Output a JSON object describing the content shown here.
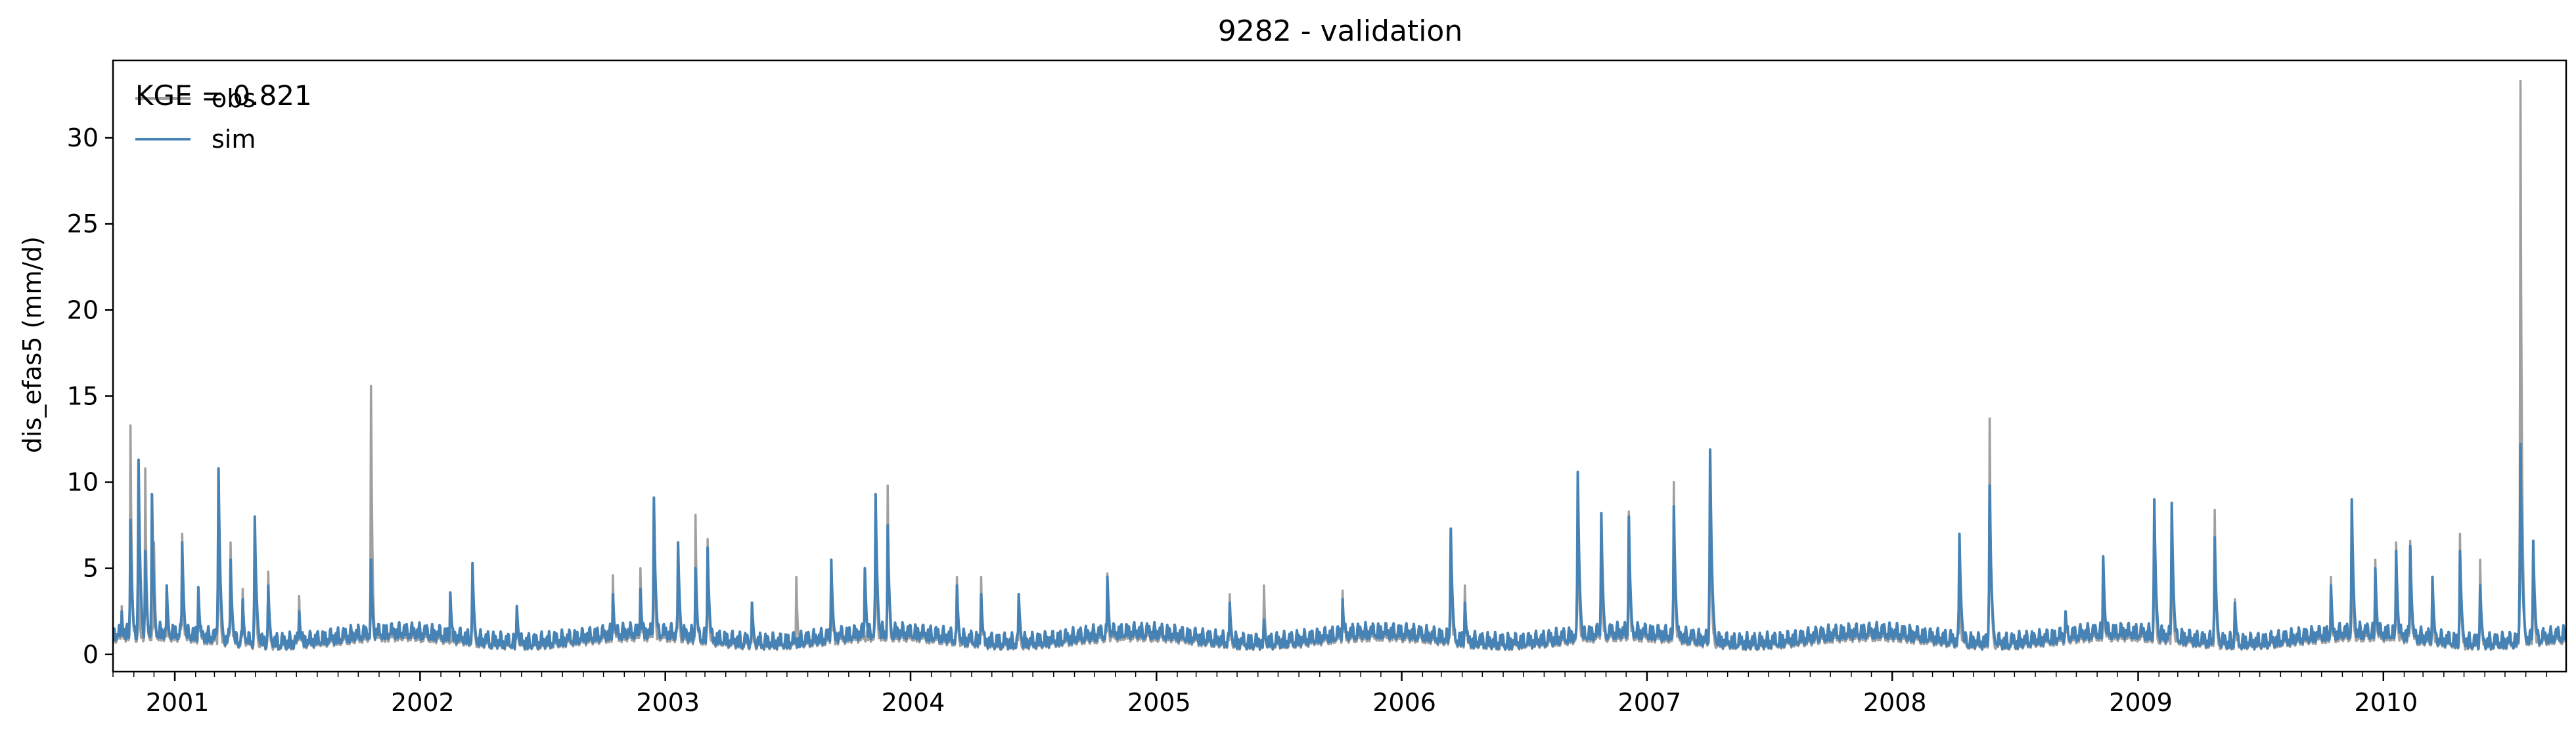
{
  "chart_data": {
    "type": "line",
    "title": "9282 - validation",
    "xlabel": "",
    "ylabel": "dis_efas5 (mm/d)",
    "annotation": "KGE = 0.821",
    "xlim": [
      "2000-10-01",
      "2010-09-30"
    ],
    "ylim": [
      -1.0,
      34.5
    ],
    "yticks": [
      0,
      5,
      10,
      15,
      20,
      25,
      30
    ],
    "xticks": [
      {
        "label": "2001",
        "date": "2001-01-01"
      },
      {
        "label": "2002",
        "date": "2002-01-01"
      },
      {
        "label": "2003",
        "date": "2003-01-01"
      },
      {
        "label": "2004",
        "date": "2004-01-01"
      },
      {
        "label": "2005",
        "date": "2005-01-01"
      },
      {
        "label": "2006",
        "date": "2006-01-01"
      },
      {
        "label": "2007",
        "date": "2007-01-01"
      },
      {
        "label": "2008",
        "date": "2008-01-01"
      },
      {
        "label": "2009",
        "date": "2009-01-01"
      },
      {
        "label": "2010",
        "date": "2010-01-01"
      }
    ],
    "grid": false,
    "legend": "top-left",
    "series": [
      {
        "name": "obs",
        "color": "#a0a0a0",
        "peaks": [
          [
            "2000-10-14",
            2.8
          ],
          [
            "2000-10-27",
            13.3
          ],
          [
            "2000-11-08",
            5.5
          ],
          [
            "2000-11-18",
            10.8
          ],
          [
            "2000-12-01",
            6.5
          ],
          [
            "2000-12-20",
            4.0
          ],
          [
            "2001-01-12",
            7.0
          ],
          [
            "2001-02-05",
            3.5
          ],
          [
            "2001-03-07",
            10.5
          ],
          [
            "2001-03-25",
            6.5
          ],
          [
            "2001-04-12",
            3.8
          ],
          [
            "2001-04-30",
            7.5
          ],
          [
            "2001-05-20",
            4.8
          ],
          [
            "2001-07-05",
            3.4
          ],
          [
            "2001-10-20",
            15.6
          ],
          [
            "2002-03-20",
            5.3
          ],
          [
            "2002-05-25",
            2.8
          ],
          [
            "2002-10-15",
            4.6
          ],
          [
            "2002-11-25",
            5.0
          ],
          [
            "2002-12-15",
            8.5
          ],
          [
            "2003-01-20",
            6.5
          ],
          [
            "2003-02-15",
            8.1
          ],
          [
            "2003-03-05",
            6.7
          ],
          [
            "2003-05-10",
            2.8
          ],
          [
            "2003-07-15",
            4.5
          ],
          [
            "2003-09-05",
            5.4
          ],
          [
            "2003-11-10",
            9.2
          ],
          [
            "2003-11-28",
            9.8
          ],
          [
            "2004-03-10",
            4.5
          ],
          [
            "2004-04-15",
            4.5
          ],
          [
            "2004-06-10",
            3.5
          ],
          [
            "2004-10-20",
            4.7
          ],
          [
            "2005-04-20",
            3.5
          ],
          [
            "2005-06-10",
            4.0
          ],
          [
            "2005-10-05",
            3.7
          ],
          [
            "2006-03-15",
            7.0
          ],
          [
            "2006-04-05",
            4.0
          ],
          [
            "2006-09-20",
            10.4
          ],
          [
            "2006-10-25",
            8.0
          ],
          [
            "2006-12-05",
            8.3
          ],
          [
            "2007-02-10",
            10.0
          ],
          [
            "2007-04-05",
            11.7
          ],
          [
            "2007-09-10",
            1.5
          ],
          [
            "2008-04-10",
            5.0
          ],
          [
            "2008-05-25",
            13.7
          ],
          [
            "2008-09-15",
            2.5
          ],
          [
            "2008-11-10",
            5.7
          ],
          [
            "2009-01-25",
            8.7
          ],
          [
            "2009-02-20",
            8.7
          ],
          [
            "2009-04-25",
            8.4
          ],
          [
            "2009-05-25",
            3.2
          ],
          [
            "2009-10-15",
            4.5
          ],
          [
            "2009-11-15",
            7.4
          ],
          [
            "2009-12-20",
            5.5
          ],
          [
            "2010-01-20",
            6.5
          ],
          [
            "2010-02-10",
            6.6
          ],
          [
            "2010-03-15",
            4.5
          ],
          [
            "2010-04-25",
            7.0
          ],
          [
            "2010-05-25",
            5.5
          ],
          [
            "2010-07-24",
            33.3
          ],
          [
            "2010-08-12",
            6.6
          ],
          [
            "2010-09-20",
            1.0
          ]
        ]
      },
      {
        "name": "sim",
        "color": "#4682b4",
        "peaks": [
          [
            "2000-10-14",
            2.5
          ],
          [
            "2000-10-27",
            7.8
          ],
          [
            "2000-11-08",
            11.3
          ],
          [
            "2000-11-18",
            6.0
          ],
          [
            "2000-11-28",
            9.3
          ],
          [
            "2000-12-20",
            4.0
          ],
          [
            "2001-01-12",
            6.5
          ],
          [
            "2001-02-05",
            3.9
          ],
          [
            "2001-03-07",
            10.8
          ],
          [
            "2001-03-25",
            5.5
          ],
          [
            "2001-04-12",
            3.2
          ],
          [
            "2001-04-30",
            8.0
          ],
          [
            "2001-05-20",
            4.0
          ],
          [
            "2001-07-05",
            2.5
          ],
          [
            "2001-10-20",
            5.5
          ],
          [
            "2002-02-15",
            3.6
          ],
          [
            "2002-03-20",
            5.3
          ],
          [
            "2002-05-25",
            2.8
          ],
          [
            "2002-10-15",
            3.5
          ],
          [
            "2002-11-25",
            3.8
          ],
          [
            "2002-12-15",
            9.1
          ],
          [
            "2003-01-20",
            6.5
          ],
          [
            "2003-02-15",
            5.0
          ],
          [
            "2003-03-05",
            6.2
          ],
          [
            "2003-05-10",
            3.0
          ],
          [
            "2003-09-05",
            5.5
          ],
          [
            "2003-10-25",
            5.0
          ],
          [
            "2003-11-10",
            9.3
          ],
          [
            "2003-11-28",
            7.5
          ],
          [
            "2004-03-10",
            4.0
          ],
          [
            "2004-04-15",
            3.5
          ],
          [
            "2004-06-10",
            3.5
          ],
          [
            "2004-10-20",
            4.5
          ],
          [
            "2005-04-20",
            3.0
          ],
          [
            "2005-06-10",
            2.0
          ],
          [
            "2005-10-05",
            3.2
          ],
          [
            "2006-03-15",
            7.3
          ],
          [
            "2006-04-05",
            3.0
          ],
          [
            "2006-09-20",
            10.6
          ],
          [
            "2006-10-25",
            8.2
          ],
          [
            "2006-12-05",
            8.0
          ],
          [
            "2007-02-10",
            8.6
          ],
          [
            "2007-04-05",
            11.9
          ],
          [
            "2007-09-10",
            1.5
          ],
          [
            "2008-04-10",
            7.0
          ],
          [
            "2008-05-25",
            9.8
          ],
          [
            "2008-09-15",
            2.5
          ],
          [
            "2008-11-10",
            5.7
          ],
          [
            "2009-01-25",
            9.0
          ],
          [
            "2009-02-20",
            8.8
          ],
          [
            "2009-04-25",
            6.8
          ],
          [
            "2009-05-25",
            3.0
          ],
          [
            "2009-10-15",
            4.0
          ],
          [
            "2009-11-15",
            9.0
          ],
          [
            "2009-12-20",
            5.0
          ],
          [
            "2010-01-20",
            6.0
          ],
          [
            "2010-02-10",
            6.3
          ],
          [
            "2010-03-15",
            4.5
          ],
          [
            "2010-04-25",
            6.0
          ],
          [
            "2010-05-25",
            4.0
          ],
          [
            "2010-07-24",
            12.2
          ],
          [
            "2010-08-12",
            6.6
          ],
          [
            "2010-09-20",
            0.8
          ]
        ]
      }
    ]
  }
}
